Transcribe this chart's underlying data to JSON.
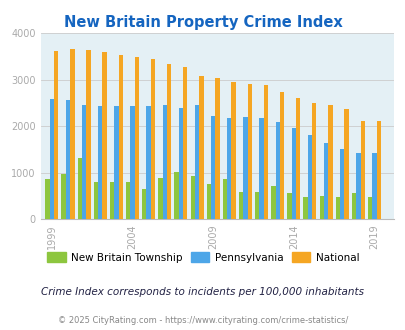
{
  "title": "New Britain Property Crime Index",
  "title_color": "#1565c0",
  "years": [
    1999,
    2000,
    2001,
    2002,
    2003,
    2004,
    2005,
    2006,
    2007,
    2008,
    2009,
    2010,
    2011,
    2012,
    2013,
    2014,
    2015,
    2016,
    2017,
    2018,
    2019
  ],
  "new_britain": [
    870,
    980,
    1310,
    810,
    810,
    800,
    650,
    890,
    1010,
    940,
    760,
    870,
    580,
    580,
    720,
    570,
    490,
    500,
    490,
    560,
    490
  ],
  "pennsylvania": [
    2590,
    2570,
    2460,
    2440,
    2440,
    2440,
    2440,
    2450,
    2390,
    2450,
    2210,
    2170,
    2200,
    2170,
    2080,
    1960,
    1810,
    1640,
    1510,
    1420,
    1430
  ],
  "national": [
    3620,
    3650,
    3640,
    3590,
    3530,
    3480,
    3440,
    3340,
    3280,
    3080,
    3040,
    2950,
    2910,
    2880,
    2740,
    2600,
    2500,
    2450,
    2360,
    2110,
    2110
  ],
  "new_britain_color": "#8dc63f",
  "pennsylvania_color": "#4da6e8",
  "national_color": "#f5a623",
  "bg_color": "#e4f0f5",
  "ylim": [
    0,
    4000
  ],
  "yticks": [
    0,
    1000,
    2000,
    3000,
    4000
  ],
  "xtick_years": [
    1999,
    2004,
    2009,
    2014,
    2019
  ],
  "subtitle": "Crime Index corresponds to incidents per 100,000 inhabitants",
  "footer": "© 2025 CityRating.com - https://www.cityrating.com/crime-statistics/",
  "legend_labels": [
    "New Britain Township",
    "Pennsylvania",
    "National"
  ],
  "bar_width": 0.27,
  "grid_color": "#cccccc",
  "subtitle_color": "#222244",
  "footer_color": "#888888",
  "tick_color": "#aaaaaa"
}
